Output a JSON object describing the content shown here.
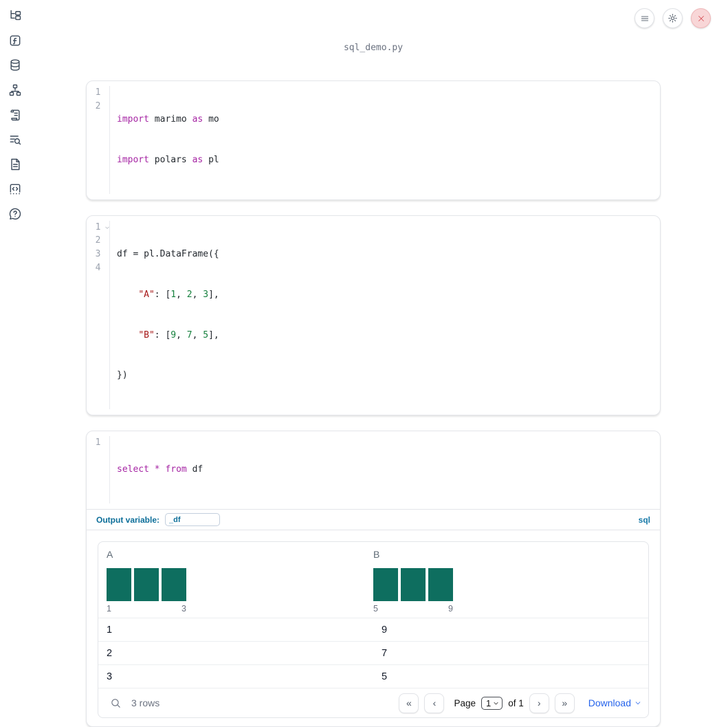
{
  "colors": {
    "hist_bar": "#0e6e5f",
    "accent": "#0b6e99",
    "link": "#2563eb",
    "keyword": "#a626a4",
    "string": "#a61717",
    "number": "#15803d",
    "close_red": "#d4484f"
  },
  "app": {
    "filename": "sql_demo.py"
  },
  "sidebar": {
    "items": [
      {
        "icon": "folder-tree"
      },
      {
        "icon": "function-square"
      },
      {
        "icon": "database"
      },
      {
        "icon": "dependency-graph"
      },
      {
        "icon": "scroll"
      },
      {
        "icon": "list-search"
      },
      {
        "icon": "document"
      },
      {
        "icon": "code-block"
      },
      {
        "icon": "help-bubble"
      }
    ]
  },
  "cells": [
    {
      "lines": [
        {
          "n": "1",
          "tokens": [
            {
              "t": "import",
              "c": "kw"
            },
            {
              "t": " marimo ",
              "c": ""
            },
            {
              "t": "as",
              "c": "kw"
            },
            {
              "t": " mo",
              "c": ""
            }
          ]
        },
        {
          "n": "2",
          "tokens": [
            {
              "t": "import",
              "c": "kw"
            },
            {
              "t": " polars ",
              "c": ""
            },
            {
              "t": "as",
              "c": "kw"
            },
            {
              "t": " pl",
              "c": ""
            }
          ]
        }
      ]
    },
    {
      "lines": [
        {
          "n": "1",
          "tokens": [
            {
              "t": "df = pl.DataFrame({",
              "c": ""
            }
          ]
        },
        {
          "n": "2",
          "tokens": [
            {
              "t": "    ",
              "c": ""
            },
            {
              "t": "\"A\"",
              "c": "str"
            },
            {
              "t": ": [",
              "c": ""
            },
            {
              "t": "1",
              "c": "num"
            },
            {
              "t": ", ",
              "c": ""
            },
            {
              "t": "2",
              "c": "num"
            },
            {
              "t": ", ",
              "c": ""
            },
            {
              "t": "3",
              "c": "num"
            },
            {
              "t": "],",
              "c": ""
            }
          ]
        },
        {
          "n": "3",
          "tokens": [
            {
              "t": "    ",
              "c": ""
            },
            {
              "t": "\"B\"",
              "c": "str"
            },
            {
              "t": ": [",
              "c": ""
            },
            {
              "t": "9",
              "c": "num"
            },
            {
              "t": ", ",
              "c": ""
            },
            {
              "t": "7",
              "c": "num"
            },
            {
              "t": ", ",
              "c": ""
            },
            {
              "t": "5",
              "c": "num"
            },
            {
              "t": "],",
              "c": ""
            }
          ]
        },
        {
          "n": "4",
          "tokens": [
            {
              "t": "})",
              "c": ""
            }
          ]
        }
      ]
    },
    {
      "lines": [
        {
          "n": "1",
          "tokens": [
            {
              "t": "select",
              "c": "kw"
            },
            {
              "t": " ",
              "c": ""
            },
            {
              "t": "*",
              "c": "kw"
            },
            {
              "t": " ",
              "c": ""
            },
            {
              "t": "from",
              "c": "kw"
            },
            {
              "t": " df",
              "c": ""
            }
          ]
        }
      ]
    }
  ],
  "sql_cell": {
    "output_variable_label": "Output variable:",
    "output_variable_value": "_df",
    "language_badge": "sql"
  },
  "table": {
    "columns": [
      {
        "label": "A",
        "hist": {
          "min": "1",
          "max": "3",
          "bars": [
            1,
            1,
            1
          ]
        }
      },
      {
        "label": "B",
        "hist": {
          "min": "5",
          "max": "9",
          "bars": [
            1,
            1,
            1
          ]
        }
      }
    ],
    "rows": [
      [
        "1",
        "9"
      ],
      [
        "2",
        "7"
      ],
      [
        "3",
        "5"
      ]
    ],
    "footer": {
      "row_count": "3 rows",
      "page_label": "Page",
      "page_value": "1",
      "of_label": "of 1",
      "download_label": "Download"
    }
  }
}
